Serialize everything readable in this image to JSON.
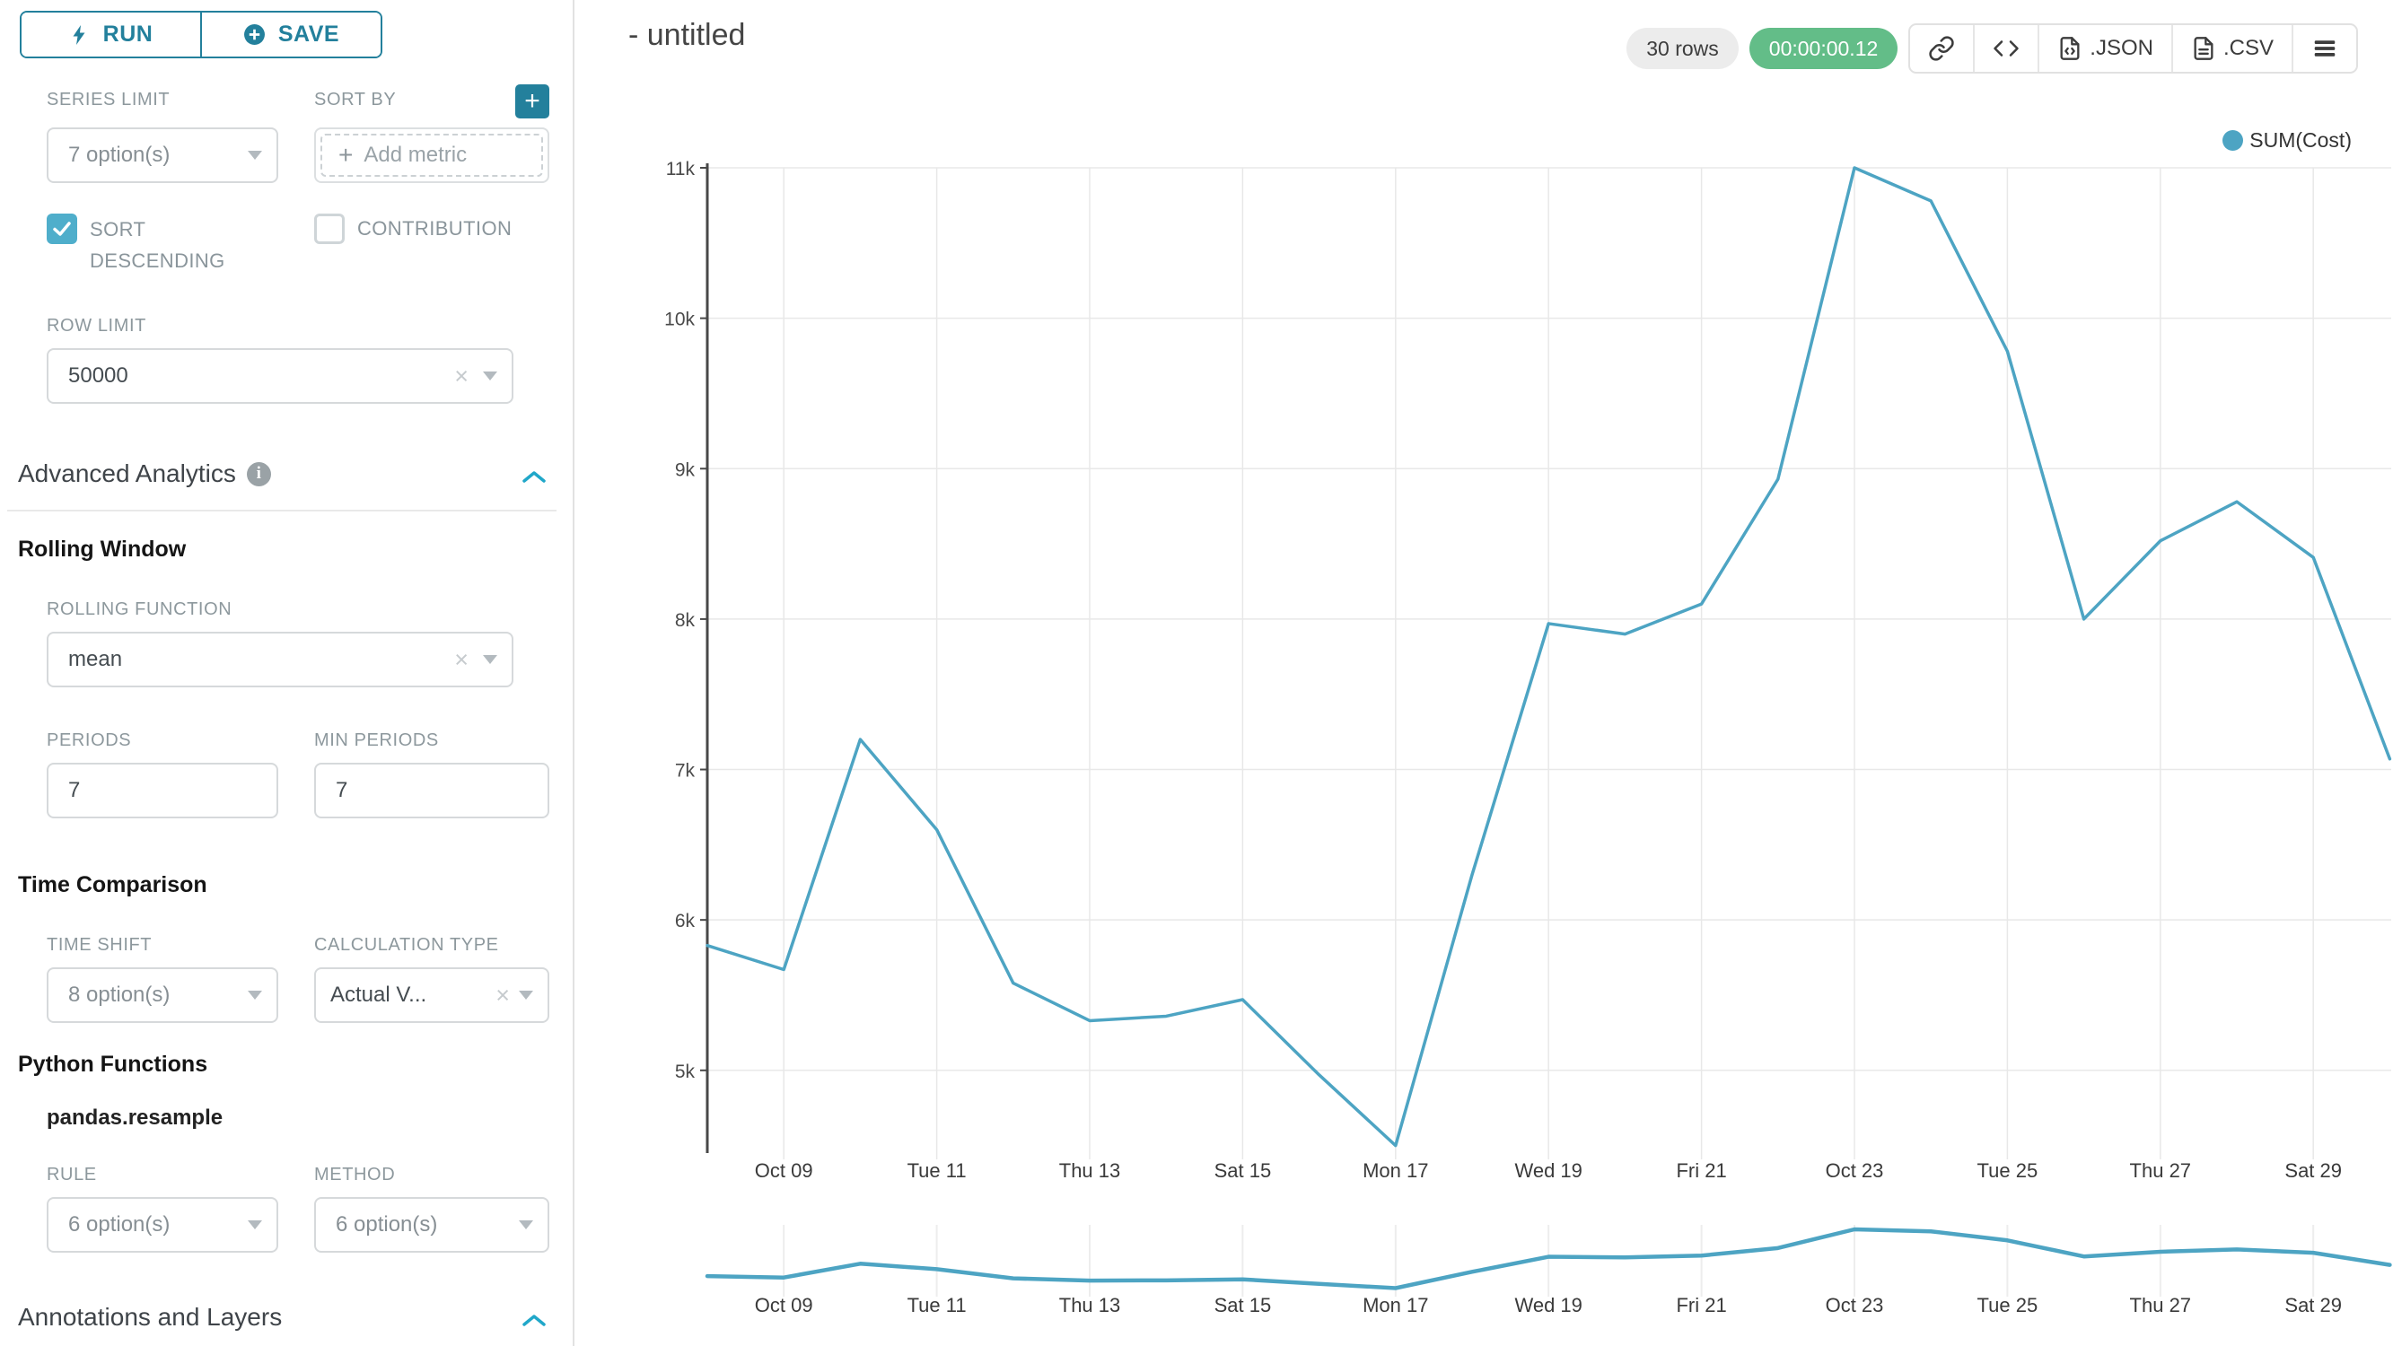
{
  "colors": {
    "accent": "#23809c",
    "highlight": "#20a7c9",
    "line": "#4DA4C3",
    "timer_green": "#63BD88",
    "grid": "#e8e8e8"
  },
  "sidebar": {
    "run_label": "RUN",
    "save_label": "SAVE",
    "series_limit": {
      "label": "SERIES LIMIT",
      "value": "7 option(s)"
    },
    "sort_by": {
      "label": "SORT BY",
      "placeholder": "Add metric"
    },
    "sort_descending_label": "SORT DESCENDING",
    "contribution_label": "CONTRIBUTION",
    "row_limit": {
      "label": "ROW LIMIT",
      "value": "50000"
    },
    "advanced_analytics": {
      "title": "Advanced Analytics"
    },
    "rolling_window": {
      "title": "Rolling Window",
      "rolling_function": {
        "label": "ROLLING FUNCTION",
        "value": "mean"
      },
      "periods": {
        "label": "PERIODS",
        "value": "7"
      },
      "min_periods": {
        "label": "MIN PERIODS",
        "value": "7"
      }
    },
    "time_comparison": {
      "title": "Time Comparison",
      "time_shift": {
        "label": "TIME SHIFT",
        "value": "8 option(s)"
      },
      "calculation_type": {
        "label": "CALCULATION TYPE",
        "value": "Actual V..."
      }
    },
    "python_functions": {
      "title": "Python Functions",
      "subtitle": "pandas.resample",
      "rule": {
        "label": "RULE",
        "value": "6 option(s)"
      },
      "method": {
        "label": "METHOD",
        "value": "6 option(s)"
      }
    },
    "annotations": {
      "title": "Annotations and Layers"
    }
  },
  "header": {
    "title": "- untitled",
    "rows_badge": "30 rows",
    "timer_badge": "00:00:00.12",
    "json_label": ".JSON",
    "csv_label": ".CSV"
  },
  "chart_data": {
    "type": "line",
    "title": "- untitled",
    "xlabel": "",
    "ylabel": "",
    "grid": true,
    "legend_position": "top-right",
    "legend": [
      {
        "name": "SUM(Cost)",
        "color": "#4DA4C3"
      }
    ],
    "ylim": [
      4450,
      11000
    ],
    "y_ticks": [
      {
        "label": "11k",
        "value": 11000
      },
      {
        "label": "10k",
        "value": 10000
      },
      {
        "label": "9k",
        "value": 9000
      },
      {
        "label": "8k",
        "value": 8000
      },
      {
        "label": "7k",
        "value": 7000
      },
      {
        "label": "6k",
        "value": 6000
      },
      {
        "label": "5k",
        "value": 5000
      }
    ],
    "x": [
      "Oct 08",
      "Oct 09",
      "Oct 10",
      "Oct 11",
      "Oct 12",
      "Oct 13",
      "Oct 14",
      "Oct 15",
      "Oct 16",
      "Oct 17",
      "Oct 18",
      "Oct 19",
      "Oct 20",
      "Oct 21",
      "Oct 22",
      "Oct 23",
      "Oct 24",
      "Oct 25",
      "Oct 26",
      "Oct 27",
      "Oct 28",
      "Oct 29",
      "Oct 30"
    ],
    "x_ticks": [
      {
        "label": "Oct 09",
        "day": 1
      },
      {
        "label": "Tue 11",
        "day": 3
      },
      {
        "label": "Thu 13",
        "day": 5
      },
      {
        "label": "Sat 15",
        "day": 7
      },
      {
        "label": "Mon 17",
        "day": 9
      },
      {
        "label": "Wed 19",
        "day": 11
      },
      {
        "label": "Fri 21",
        "day": 13
      },
      {
        "label": "Oct 23",
        "day": 15
      },
      {
        "label": "Tue 25",
        "day": 17
      },
      {
        "label": "Thu 27",
        "day": 19
      },
      {
        "label": "Sat 29",
        "day": 21
      }
    ],
    "series": [
      {
        "name": "SUM(Cost)",
        "values": [
          5830,
          5670,
          7200,
          6600,
          5580,
          5330,
          5360,
          5470,
          4970,
          4500,
          6300,
          7970,
          7900,
          8100,
          8930,
          11000,
          10780,
          9780,
          8000,
          8520,
          8780,
          8410,
          7070
        ]
      }
    ],
    "mini_chart": true
  }
}
